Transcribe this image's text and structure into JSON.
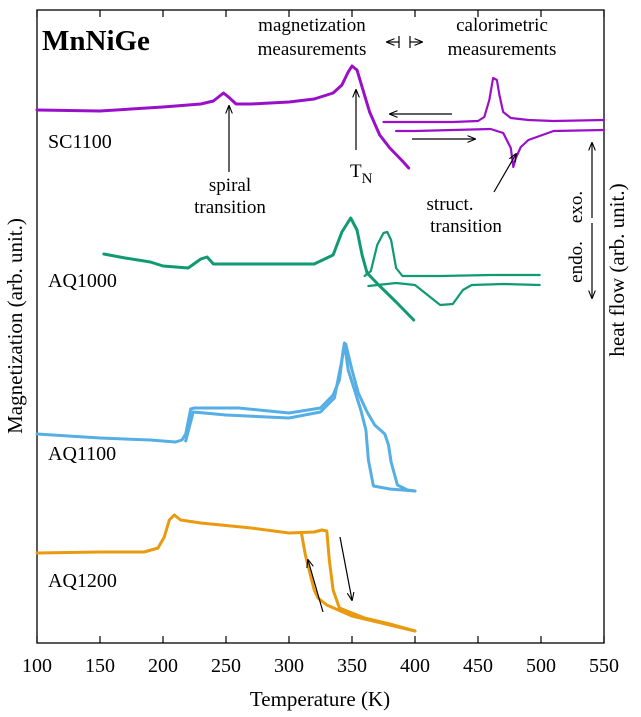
{
  "chart_data": {
    "type": "line",
    "title": "MnNiGe",
    "xlabel": "Temperature (K)",
    "ylabel_left": "Magnetization (arb. unit.)",
    "ylabel_right": "heat flow (arb. unit.)",
    "xlim": [
      100,
      550
    ],
    "xticks": [
      "100",
      "150",
      "200",
      "250",
      "300",
      "350",
      "400",
      "450",
      "500",
      "550"
    ],
    "grid": false,
    "legend": "none",
    "annotations": {
      "magnetization": "magnetization",
      "magnetization2": "measurements",
      "calorimetric": "calorimetric",
      "calorimetric2": "measurements",
      "spiral": "spiral",
      "spiral2": "transition",
      "tn_main": "T",
      "tn_sub": "N",
      "struct": "struct.",
      "struct2": "transition",
      "exo": "exo.",
      "endo": "endo."
    },
    "series": [
      {
        "name": "SC1100",
        "color": "#9a10c8",
        "magnetization": [
          [
            100,
            110
          ],
          [
            150,
            111
          ],
          [
            200,
            107
          ],
          [
            230,
            104
          ],
          [
            240,
            101
          ],
          [
            245,
            96
          ],
          [
            248,
            93
          ],
          [
            252,
            97
          ],
          [
            258,
            104
          ],
          [
            270,
            104
          ],
          [
            300,
            102
          ],
          [
            320,
            99
          ],
          [
            335,
            93
          ],
          [
            342,
            85
          ],
          [
            347,
            72
          ],
          [
            350,
            66
          ],
          [
            354,
            70
          ],
          [
            358,
            87
          ],
          [
            364,
            112
          ],
          [
            372,
            135
          ],
          [
            380,
            148
          ],
          [
            390,
            161
          ],
          [
            395,
            168
          ]
        ],
        "calorimetric_cooling": [
          [
            375,
            122
          ],
          [
            400,
            122
          ],
          [
            430,
            122
          ],
          [
            450,
            121
          ],
          [
            455,
            117
          ],
          [
            459,
            100
          ],
          [
            462,
            78
          ],
          [
            465,
            80
          ],
          [
            467,
            95
          ],
          [
            470,
            112
          ],
          [
            476,
            118
          ],
          [
            490,
            120
          ],
          [
            510,
            121
          ],
          [
            550,
            120
          ]
        ],
        "calorimetric_heating": [
          [
            385,
            131
          ],
          [
            400,
            131
          ],
          [
            430,
            130
          ],
          [
            460,
            129
          ],
          [
            470,
            133
          ],
          [
            476,
            148
          ],
          [
            478,
            167
          ],
          [
            480,
            158
          ],
          [
            484,
            147
          ],
          [
            490,
            140
          ],
          [
            510,
            131
          ],
          [
            550,
            130
          ]
        ]
      },
      {
        "name": "AQ1000",
        "color": "#0f9a72",
        "magnetization": [
          [
            153,
            254
          ],
          [
            170,
            258
          ],
          [
            190,
            262
          ],
          [
            200,
            266
          ],
          [
            220,
            268
          ],
          [
            230,
            259
          ],
          [
            235,
            257
          ],
          [
            240,
            264
          ],
          [
            280,
            264
          ],
          [
            320,
            264
          ],
          [
            335,
            255
          ],
          [
            342,
            232
          ],
          [
            349,
            218
          ],
          [
            354,
            230
          ],
          [
            358,
            255
          ],
          [
            362,
            273
          ],
          [
            372,
            286
          ],
          [
            385,
            302
          ],
          [
            399,
            320
          ]
        ],
        "calorimetric_cooling": [
          [
            360,
            276
          ],
          [
            365,
            271
          ],
          [
            370,
            245
          ],
          [
            375,
            233
          ],
          [
            378,
            232
          ],
          [
            381,
            240
          ],
          [
            385,
            268
          ],
          [
            390,
            276
          ],
          [
            420,
            276
          ],
          [
            460,
            275
          ],
          [
            499,
            275
          ]
        ],
        "calorimetric_heating": [
          [
            363,
            286
          ],
          [
            385,
            283
          ],
          [
            400,
            285
          ],
          [
            410,
            295
          ],
          [
            420,
            305
          ],
          [
            430,
            304
          ],
          [
            438,
            290
          ],
          [
            445,
            285
          ],
          [
            470,
            284
          ],
          [
            499,
            285
          ]
        ]
      },
      {
        "name": "AQ1100",
        "color": "#55aee4",
        "magnetization_a": [
          [
            100,
            434
          ],
          [
            150,
            438
          ],
          [
            190,
            440
          ],
          [
            210,
            442
          ],
          [
            215,
            440
          ],
          [
            218,
            434
          ],
          [
            222,
            409
          ],
          [
            225,
            408
          ],
          [
            260,
            408
          ],
          [
            300,
            413
          ],
          [
            325,
            408
          ],
          [
            335,
            395
          ],
          [
            340,
            380
          ],
          [
            343,
            350
          ],
          [
            345,
            344
          ],
          [
            350,
            370
          ],
          [
            355,
            393
          ],
          [
            362,
            412
          ],
          [
            368,
            425
          ],
          [
            376,
            434
          ],
          [
            379,
            445
          ],
          [
            381,
            462
          ],
          [
            386,
            485
          ],
          [
            394,
            490
          ],
          [
            400,
            491
          ]
        ],
        "magnetization_b": [
          [
            218,
            441
          ],
          [
            224,
            412
          ],
          [
            250,
            415
          ],
          [
            300,
            418
          ],
          [
            325,
            412
          ],
          [
            336,
            398
          ],
          [
            342,
            360
          ],
          [
            344,
            343
          ],
          [
            347,
            370
          ],
          [
            352,
            390
          ],
          [
            357,
            410
          ],
          [
            361,
            430
          ],
          [
            363,
            460
          ],
          [
            367,
            486
          ],
          [
            380,
            489
          ],
          [
            400,
            491
          ]
        ]
      },
      {
        "name": "AQ1200",
        "color": "#e99a0f",
        "magnetization_a": [
          [
            100,
            553
          ],
          [
            150,
            552
          ],
          [
            185,
            552
          ],
          [
            196,
            548
          ],
          [
            201,
            537
          ],
          [
            205,
            520
          ],
          [
            209,
            515
          ],
          [
            214,
            520
          ],
          [
            230,
            523
          ],
          [
            270,
            528
          ],
          [
            300,
            533
          ],
          [
            320,
            532
          ],
          [
            326,
            530
          ],
          [
            330,
            531
          ],
          [
            332,
            560
          ],
          [
            335,
            590
          ],
          [
            340,
            608
          ],
          [
            360,
            618
          ],
          [
            380,
            624
          ],
          [
            400,
            631
          ]
        ],
        "magnetization_b": [
          [
            310,
            534
          ],
          [
            313,
            555
          ],
          [
            317,
            575
          ],
          [
            320,
            590
          ],
          [
            323,
            598
          ],
          [
            330,
            605
          ],
          [
            350,
            616
          ],
          [
            370,
            622
          ],
          [
            400,
            631
          ]
        ]
      }
    ]
  }
}
